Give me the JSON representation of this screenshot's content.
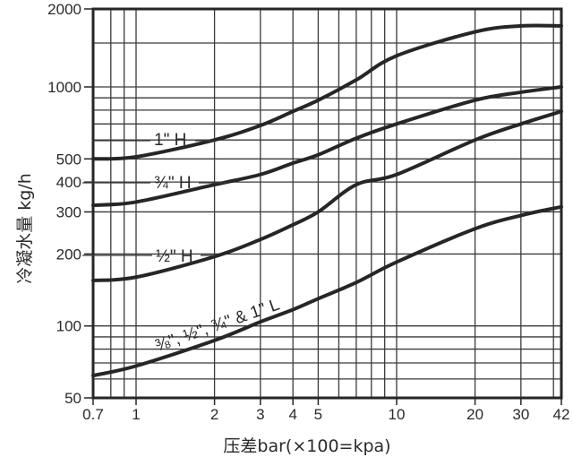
{
  "chart_data": {
    "type": "line",
    "title": "",
    "xlabel": "压差bar(×100=kpa)",
    "ylabel": "冷凝水量 kg/h",
    "xscale": "log",
    "yscale": "log",
    "xlim": [
      0.7,
      42
    ],
    "ylim": [
      50,
      2000
    ],
    "grid": true,
    "x_ticks": [
      0.7,
      1,
      2,
      3,
      4,
      5,
      10,
      20,
      30,
      42
    ],
    "x_tick_labels": [
      "0.7",
      "1",
      "2",
      "3",
      "4",
      "5",
      "10",
      "20",
      "30",
      "42"
    ],
    "x_gridlines": [
      0.8,
      0.9,
      1,
      2,
      3,
      4,
      5,
      6,
      7,
      8,
      9,
      10,
      20,
      30,
      40
    ],
    "y_ticks": [
      50,
      100,
      200,
      300,
      400,
      500,
      1000,
      2000
    ],
    "y_tick_labels": [
      "50",
      "100",
      "200",
      "300",
      "400",
      "500",
      "1000",
      "2000"
    ],
    "y_gridlines": [
      60,
      70,
      80,
      90,
      100,
      200,
      300,
      400,
      500,
      600,
      700,
      800,
      900,
      1000,
      1500
    ],
    "x": [
      0.7,
      1,
      2,
      3,
      4,
      5,
      7,
      10,
      20,
      30,
      42
    ],
    "series": [
      {
        "name": "1\" H",
        "values": [
          500,
          510,
          600,
          690,
          790,
          880,
          1070,
          1350,
          1700,
          1800,
          1800
        ]
      },
      {
        "name": "3/4\" H",
        "values": [
          320,
          330,
          390,
          430,
          480,
          520,
          610,
          700,
          880,
          950,
          1000
        ]
      },
      {
        "name": "1/2\" H",
        "values": [
          155,
          160,
          195,
          230,
          265,
          300,
          390,
          430,
          600,
          700,
          790
        ]
      },
      {
        "name": "3/8\", 1/2\", 3/4\" & 1\" L",
        "values": [
          62,
          68,
          87,
          104,
          117,
          130,
          152,
          185,
          255,
          290,
          315
        ]
      }
    ],
    "legend": "none (inline curve labels)"
  },
  "labels": {
    "curve_1": "1\" H",
    "curve_2": "¾\" H",
    "curve_3": "½\" H",
    "curve_4": "⅜\", ½\", ¾\" & 1\" L"
  },
  "colors": {
    "line": "#262626",
    "grid": "#3a3a3a",
    "background": "#ffffff"
  }
}
